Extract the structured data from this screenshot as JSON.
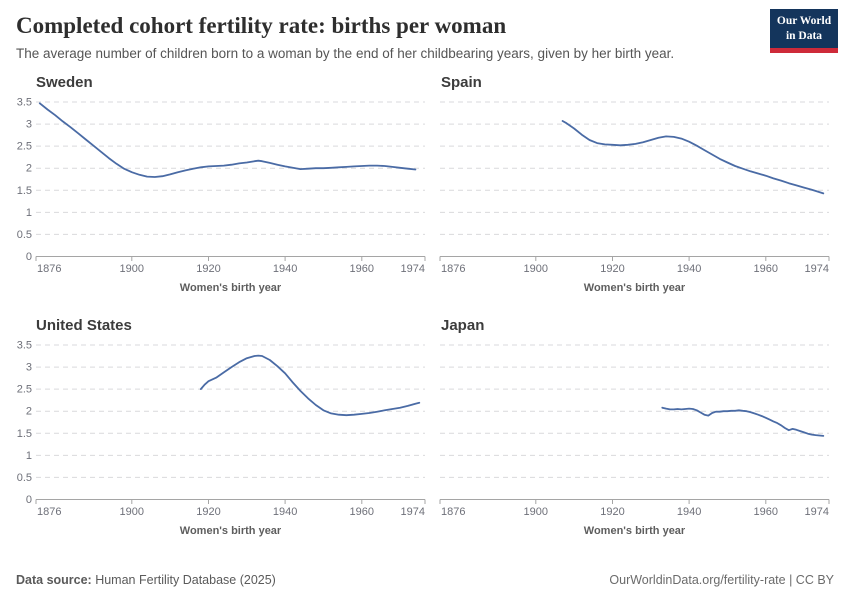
{
  "header": {
    "title": "Completed cohort fertility rate: births per woman",
    "subtitle": "The average number of children born to a woman by the end of her childbearing years, given by her birth year.",
    "logo_line1": "Our World",
    "logo_line2": "in Data"
  },
  "colors": {
    "line": "#4A6BA5",
    "logo_bg": "#14355C",
    "logo_stripe": "#CE2A39",
    "gridline": "#d9d9dc",
    "axis": "#a5a5a5",
    "tick_text": "#6e7079"
  },
  "axes": {
    "xlabel": "Women's birth year",
    "ydomain": [
      0,
      3.5
    ],
    "xdomain": [
      1875,
      1976.5
    ],
    "yticks": [
      0,
      0.5,
      1,
      1.5,
      2,
      2.5,
      3,
      3.5
    ],
    "ygrid": [
      0.5,
      1,
      1.5,
      2,
      2.5,
      3,
      3.5
    ],
    "xticks": [
      1876,
      1900,
      1920,
      1940,
      1960,
      1974
    ]
  },
  "chart_data": [
    {
      "type": "line",
      "title": "Sweden",
      "xlabel": "Women's birth year",
      "ylim": [
        0,
        3.5
      ],
      "points": [
        [
          1876,
          3.47
        ],
        [
          1878,
          3.33
        ],
        [
          1880,
          3.2
        ],
        [
          1882,
          3.06
        ],
        [
          1884,
          2.93
        ],
        [
          1886,
          2.79
        ],
        [
          1888,
          2.65
        ],
        [
          1890,
          2.51
        ],
        [
          1892,
          2.37
        ],
        [
          1894,
          2.23
        ],
        [
          1896,
          2.1
        ],
        [
          1898,
          1.99
        ],
        [
          1900,
          1.91
        ],
        [
          1902,
          1.85
        ],
        [
          1904,
          1.81
        ],
        [
          1906,
          1.8
        ],
        [
          1908,
          1.82
        ],
        [
          1910,
          1.86
        ],
        [
          1912,
          1.91
        ],
        [
          1914,
          1.95
        ],
        [
          1916,
          1.99
        ],
        [
          1918,
          2.02
        ],
        [
          1920,
          2.04
        ],
        [
          1922,
          2.05
        ],
        [
          1924,
          2.06
        ],
        [
          1926,
          2.08
        ],
        [
          1928,
          2.11
        ],
        [
          1930,
          2.13
        ],
        [
          1932,
          2.16
        ],
        [
          1933,
          2.17
        ],
        [
          1934,
          2.16
        ],
        [
          1936,
          2.12
        ],
        [
          1938,
          2.08
        ],
        [
          1940,
          2.04
        ],
        [
          1942,
          2.01
        ],
        [
          1944,
          1.98
        ],
        [
          1946,
          1.99
        ],
        [
          1948,
          2.0
        ],
        [
          1950,
          2.0
        ],
        [
          1952,
          2.01
        ],
        [
          1954,
          2.02
        ],
        [
          1956,
          2.03
        ],
        [
          1958,
          2.04
        ],
        [
          1960,
          2.05
        ],
        [
          1962,
          2.06
        ],
        [
          1964,
          2.06
        ],
        [
          1966,
          2.05
        ],
        [
          1968,
          2.03
        ],
        [
          1970,
          2.01
        ],
        [
          1972,
          1.99
        ],
        [
          1974,
          1.97
        ]
      ]
    },
    {
      "type": "line",
      "title": "Spain",
      "xlabel": "Women's birth year",
      "ylim": [
        0,
        3.5
      ],
      "points": [
        [
          1907,
          3.07
        ],
        [
          1908,
          3.02
        ],
        [
          1910,
          2.9
        ],
        [
          1912,
          2.76
        ],
        [
          1914,
          2.64
        ],
        [
          1916,
          2.57
        ],
        [
          1918,
          2.54
        ],
        [
          1920,
          2.53
        ],
        [
          1922,
          2.52
        ],
        [
          1924,
          2.53
        ],
        [
          1926,
          2.55
        ],
        [
          1928,
          2.59
        ],
        [
          1930,
          2.64
        ],
        [
          1932,
          2.69
        ],
        [
          1934,
          2.72
        ],
        [
          1936,
          2.71
        ],
        [
          1938,
          2.67
        ],
        [
          1940,
          2.6
        ],
        [
          1942,
          2.51
        ],
        [
          1944,
          2.41
        ],
        [
          1946,
          2.31
        ],
        [
          1948,
          2.21
        ],
        [
          1950,
          2.13
        ],
        [
          1952,
          2.05
        ],
        [
          1954,
          1.99
        ],
        [
          1956,
          1.93
        ],
        [
          1958,
          1.88
        ],
        [
          1960,
          1.83
        ],
        [
          1962,
          1.77
        ],
        [
          1964,
          1.72
        ],
        [
          1966,
          1.66
        ],
        [
          1968,
          1.61
        ],
        [
          1970,
          1.56
        ],
        [
          1972,
          1.51
        ],
        [
          1974,
          1.46
        ],
        [
          1975,
          1.43
        ]
      ]
    },
    {
      "type": "line",
      "title": "United States",
      "xlabel": "Women's birth year",
      "ylim": [
        0,
        3.5
      ],
      "points": [
        [
          1918,
          2.5
        ],
        [
          1919,
          2.6
        ],
        [
          1920,
          2.68
        ],
        [
          1922,
          2.76
        ],
        [
          1924,
          2.88
        ],
        [
          1926,
          3.0
        ],
        [
          1928,
          3.11
        ],
        [
          1930,
          3.2
        ],
        [
          1932,
          3.25
        ],
        [
          1933,
          3.26
        ],
        [
          1934,
          3.25
        ],
        [
          1936,
          3.16
        ],
        [
          1938,
          3.02
        ],
        [
          1940,
          2.86
        ],
        [
          1942,
          2.65
        ],
        [
          1944,
          2.46
        ],
        [
          1946,
          2.29
        ],
        [
          1948,
          2.14
        ],
        [
          1950,
          2.02
        ],
        [
          1952,
          1.95
        ],
        [
          1954,
          1.92
        ],
        [
          1956,
          1.91
        ],
        [
          1958,
          1.92
        ],
        [
          1960,
          1.94
        ],
        [
          1962,
          1.96
        ],
        [
          1964,
          1.99
        ],
        [
          1966,
          2.02
        ],
        [
          1968,
          2.05
        ],
        [
          1970,
          2.08
        ],
        [
          1972,
          2.12
        ],
        [
          1974,
          2.17
        ],
        [
          1975,
          2.19
        ]
      ]
    },
    {
      "type": "line",
      "title": "Japan",
      "xlabel": "Women's birth year",
      "ylim": [
        0,
        3.5
      ],
      "points": [
        [
          1933,
          2.08
        ],
        [
          1934,
          2.06
        ],
        [
          1935,
          2.04
        ],
        [
          1936,
          2.04
        ],
        [
          1937,
          2.05
        ],
        [
          1938,
          2.04
        ],
        [
          1939,
          2.05
        ],
        [
          1940,
          2.06
        ],
        [
          1941,
          2.05
        ],
        [
          1942,
          2.02
        ],
        [
          1943,
          1.97
        ],
        [
          1944,
          1.92
        ],
        [
          1945,
          1.9
        ],
        [
          1946,
          1.96
        ],
        [
          1947,
          1.99
        ],
        [
          1948,
          1.99
        ],
        [
          1949,
          2.0
        ],
        [
          1950,
          2.0
        ],
        [
          1951,
          2.01
        ],
        [
          1952,
          2.01
        ],
        [
          1953,
          2.02
        ],
        [
          1954,
          2.01
        ],
        [
          1955,
          2.0
        ],
        [
          1956,
          1.98
        ],
        [
          1957,
          1.95
        ],
        [
          1958,
          1.92
        ],
        [
          1959,
          1.89
        ],
        [
          1960,
          1.85
        ],
        [
          1961,
          1.81
        ],
        [
          1962,
          1.77
        ],
        [
          1963,
          1.73
        ],
        [
          1964,
          1.68
        ],
        [
          1965,
          1.62
        ],
        [
          1966,
          1.57
        ],
        [
          1967,
          1.6
        ],
        [
          1968,
          1.58
        ],
        [
          1969,
          1.55
        ],
        [
          1970,
          1.52
        ],
        [
          1971,
          1.49
        ],
        [
          1972,
          1.47
        ],
        [
          1973,
          1.46
        ],
        [
          1974,
          1.45
        ],
        [
          1975,
          1.44
        ]
      ]
    }
  ],
  "footer": {
    "source_label": "Data source:",
    "source_value": " Human Fertility Database (2025)",
    "citation": "OurWorldinData.org/fertility-rate | CC BY"
  }
}
